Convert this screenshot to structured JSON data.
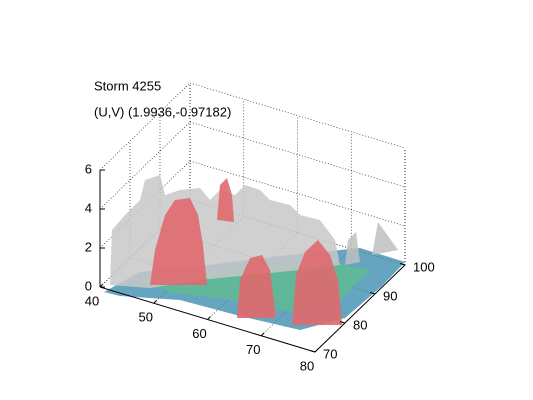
{
  "chart_data": {
    "type": "surface3d",
    "title": "Storm 4255",
    "subtitle": "(U,V) (1.9936,-0.97182)",
    "xlim": [
      40,
      80
    ],
    "xticks": [
      40,
      50,
      60,
      70,
      80
    ],
    "ylim": [
      70,
      100
    ],
    "yticks": [
      70,
      80,
      90,
      100
    ],
    "zlim": [
      0,
      6
    ],
    "zticks": [
      0,
      2,
      4,
      6
    ],
    "grid": true
  }
}
